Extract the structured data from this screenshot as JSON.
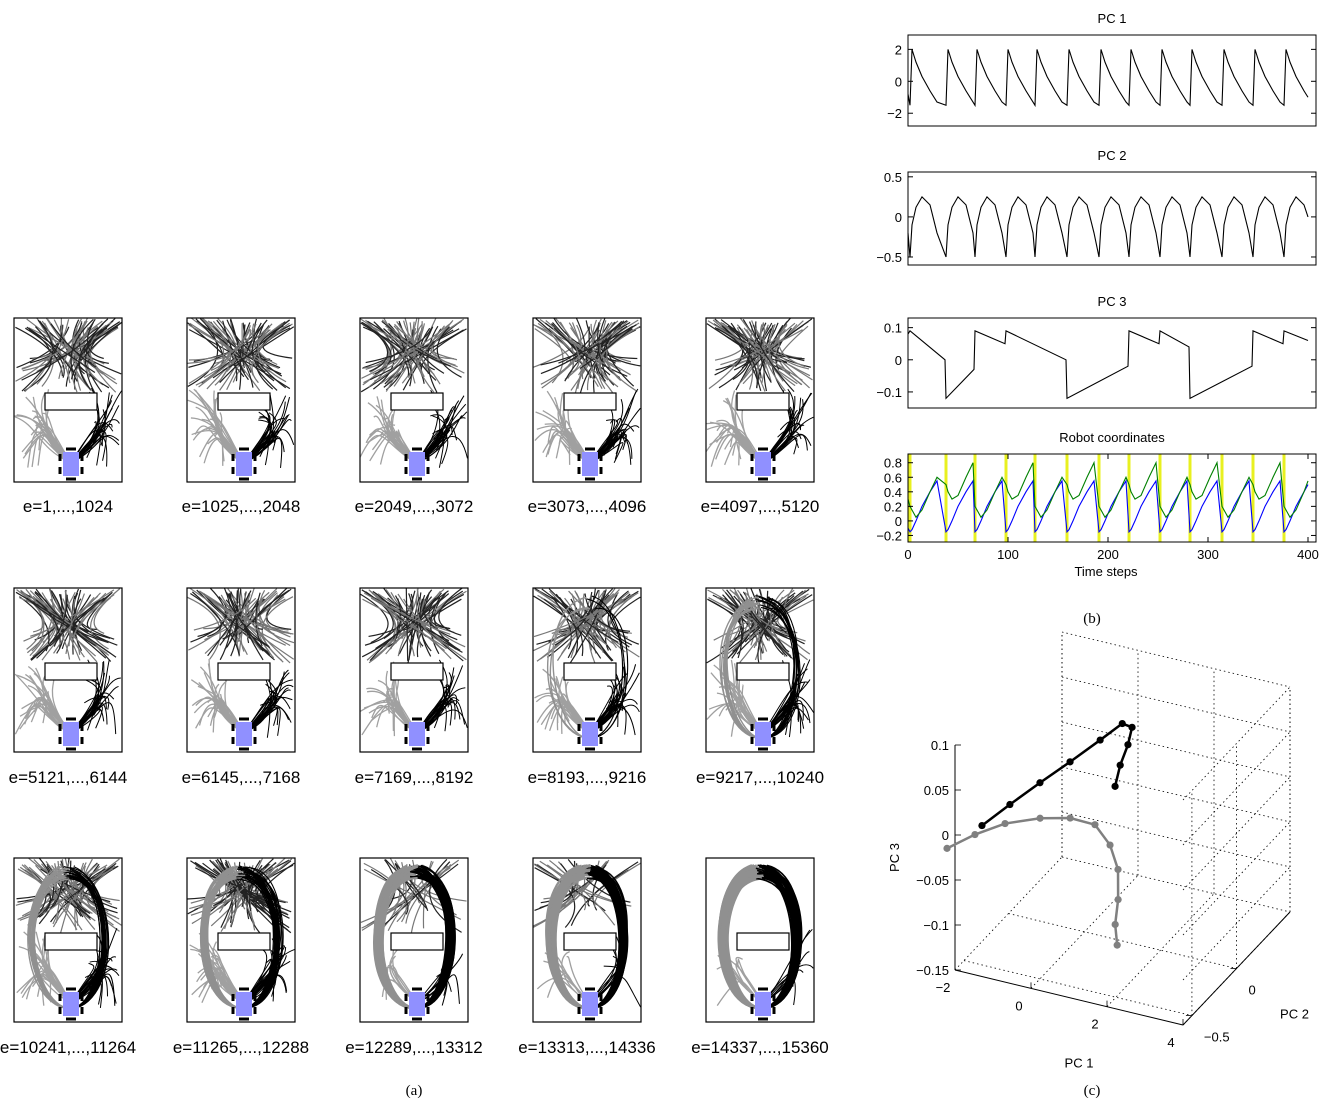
{
  "panel_labels": [
    "(a)",
    "(b)",
    "(c)"
  ],
  "panel_a": {
    "captions": [
      "e=1,...,1024",
      "e=1025,...,2048",
      "e=2049,...,3072",
      "e=3073,...,4096",
      "e=4097,...,5120",
      "e=5121,...,6144",
      "e=6145,...,7168",
      "e=7169,...,8192",
      "e=8193,...,9216",
      "e=9217,...,10240",
      "e=10241,...,11264",
      "e=11265,...,12288",
      "e=12289,...,13312",
      "e=13313,...,14336",
      "e=14337,...,15360"
    ]
  },
  "chart_data": [
    {
      "type": "line",
      "title": "PC 1",
      "xlim": [
        0,
        408
      ],
      "ylim": [
        -2.8,
        2.9
      ],
      "yticks": [
        {
          "value": -2,
          "label": "−2"
        },
        0,
        2
      ],
      "x": [
        0,
        2,
        4,
        8,
        14,
        22,
        29,
        38,
        40,
        44,
        50,
        58,
        65,
        67,
        69,
        73,
        79,
        87,
        94,
        98,
        100,
        104,
        110,
        118,
        125,
        127,
        129,
        133,
        139,
        147,
        154,
        159,
        161,
        165,
        171,
        179,
        186,
        191,
        193,
        197,
        203,
        211,
        218,
        221,
        223,
        227,
        233,
        241,
        248,
        252,
        254,
        258,
        264,
        272,
        279,
        282,
        284,
        288,
        294,
        302,
        309,
        314,
        316,
        320,
        326,
        334,
        341,
        345,
        347,
        351,
        357,
        365,
        372,
        376,
        378,
        382,
        388,
        396,
        400
      ],
      "series": [
        {
          "color": "#000000",
          "values": [
            -0.8,
            -1.5,
            2,
            1.2,
            0.3,
            -0.6,
            -1.3,
            -1.5,
            2,
            1.2,
            0.3,
            -0.6,
            -1.3,
            -1.5,
            2,
            1.2,
            0.3,
            -0.6,
            -1.3,
            -1.5,
            2,
            1.2,
            0.3,
            -0.6,
            -1.3,
            -1.5,
            2,
            1.2,
            0.3,
            -0.6,
            -1.3,
            -1.5,
            2,
            1.2,
            0.3,
            -0.6,
            -1.3,
            -1.5,
            2,
            1.2,
            0.3,
            -0.6,
            -1.3,
            -1.5,
            2,
            1.2,
            0.3,
            -0.6,
            -1.3,
            -1.5,
            2,
            1.2,
            0.3,
            -0.6,
            -1.3,
            -1.5,
            2,
            1.2,
            0.3,
            -0.6,
            -1.3,
            -1.5,
            2,
            1.2,
            0.3,
            -0.6,
            -1.3,
            -1.5,
            2,
            1.2,
            0.3,
            -0.6,
            -1.3,
            -1.5,
            2,
            1.2,
            0.3,
            -0.6,
            -1.0
          ]
        }
      ]
    },
    {
      "type": "line",
      "title": "PC 2",
      "xlim": [
        0,
        408
      ],
      "ylim": [
        -0.6,
        0.56
      ],
      "yticks": [
        {
          "value": -0.5,
          "label": "−0.5"
        },
        0,
        0.5
      ],
      "x": [
        0,
        2,
        4,
        8,
        14,
        22,
        29,
        38,
        40,
        44,
        50,
        58,
        65,
        67,
        69,
        73,
        79,
        87,
        94,
        98,
        100,
        104,
        110,
        118,
        125,
        127,
        129,
        133,
        139,
        147,
        154,
        159,
        161,
        165,
        171,
        179,
        186,
        191,
        193,
        197,
        203,
        211,
        218,
        221,
        223,
        227,
        233,
        241,
        248,
        252,
        254,
        258,
        264,
        272,
        279,
        282,
        284,
        288,
        294,
        302,
        309,
        314,
        316,
        320,
        326,
        334,
        341,
        345,
        347,
        351,
        357,
        365,
        372,
        376,
        378,
        382,
        388,
        396,
        400
      ],
      "series": [
        {
          "color": "#000000",
          "values": [
            -0.2,
            -0.5,
            -0.1,
            0.12,
            0.25,
            0.15,
            -0.2,
            -0.5,
            -0.1,
            0.12,
            0.25,
            0.15,
            -0.2,
            -0.5,
            -0.1,
            0.12,
            0.25,
            0.15,
            -0.2,
            -0.5,
            -0.1,
            0.12,
            0.25,
            0.15,
            -0.2,
            -0.5,
            -0.1,
            0.12,
            0.25,
            0.15,
            -0.2,
            -0.5,
            -0.1,
            0.12,
            0.25,
            0.15,
            -0.2,
            -0.5,
            -0.1,
            0.12,
            0.25,
            0.15,
            -0.2,
            -0.5,
            -0.1,
            0.12,
            0.25,
            0.15,
            -0.2,
            -0.5,
            -0.1,
            0.12,
            0.25,
            0.15,
            -0.2,
            -0.5,
            -0.1,
            0.12,
            0.25,
            0.15,
            -0.2,
            -0.5,
            -0.1,
            0.12,
            0.25,
            0.15,
            -0.2,
            -0.5,
            -0.1,
            0.12,
            0.25,
            0.15,
            -0.2,
            -0.5,
            -0.1,
            0.12,
            0.25,
            0.15,
            0.0
          ]
        }
      ]
    },
    {
      "type": "line",
      "title": "PC 3",
      "xlim": [
        0,
        408
      ],
      "ylim": [
        -0.15,
        0.13
      ],
      "yticks": [
        {
          "value": -0.1,
          "label": "−0.1"
        },
        0,
        0.1
      ],
      "x": [
        0,
        2,
        37,
        38,
        66,
        67,
        97,
        98,
        158,
        159,
        220,
        221,
        251,
        252,
        281,
        282,
        344,
        345,
        375,
        376,
        400
      ],
      "series": [
        {
          "color": "#000000",
          "values": [
            0.08,
            0.09,
            0.0,
            -0.12,
            -0.03,
            0.09,
            0.05,
            0.09,
            0.0,
            -0.12,
            -0.02,
            0.09,
            0.05,
            0.09,
            0.04,
            -0.12,
            -0.02,
            0.09,
            0.05,
            0.09,
            0.06
          ]
        }
      ]
    },
    {
      "type": "line",
      "title": "Robot coordinates",
      "xlabel": "Time steps",
      "xlim": [
        0,
        408
      ],
      "ylim": [
        -0.29,
        0.92
      ],
      "xticks": [
        0,
        100,
        200,
        300,
        400
      ],
      "yticks": [
        {
          "value": -0.2,
          "label": "−0.2"
        },
        0,
        0.2,
        0.4,
        0.6,
        0.8
      ],
      "markers_x": [
        2,
        38,
        67,
        98,
        127,
        159,
        191,
        221,
        252,
        282,
        314,
        345,
        376
      ],
      "marker_color": "#e8f020",
      "x": [
        0,
        2,
        4,
        8,
        14,
        22,
        29,
        38,
        40,
        44,
        50,
        58,
        65,
        67,
        69,
        73,
        79,
        87,
        94,
        98,
        100,
        104,
        110,
        118,
        125,
        127,
        129,
        133,
        139,
        147,
        154,
        159,
        161,
        165,
        171,
        179,
        186,
        191,
        193,
        197,
        203,
        211,
        218,
        221,
        223,
        227,
        233,
        241,
        248,
        252,
        254,
        258,
        264,
        272,
        279,
        282,
        284,
        288,
        294,
        302,
        309,
        314,
        316,
        320,
        326,
        334,
        341,
        345,
        347,
        351,
        357,
        365,
        372,
        376,
        378,
        382,
        388,
        396,
        400
      ],
      "series": [
        {
          "color": "#0000ff",
          "values": [
            -0.1,
            -0.15,
            -0.12,
            0.0,
            0.2,
            0.4,
            0.55,
            -0.15,
            -0.12,
            0.0,
            0.2,
            0.4,
            0.55,
            -0.15,
            -0.12,
            0.0,
            0.2,
            0.4,
            0.55,
            -0.15,
            -0.12,
            0.0,
            0.2,
            0.4,
            0.55,
            -0.15,
            -0.12,
            0.0,
            0.2,
            0.4,
            0.55,
            -0.15,
            -0.12,
            0.0,
            0.2,
            0.4,
            0.55,
            -0.15,
            -0.12,
            0.0,
            0.2,
            0.4,
            0.55,
            -0.15,
            -0.12,
            0.0,
            0.2,
            0.4,
            0.55,
            -0.15,
            -0.12,
            0.0,
            0.2,
            0.4,
            0.55,
            -0.15,
            -0.12,
            0.0,
            0.2,
            0.4,
            0.55,
            -0.15,
            -0.12,
            0.0,
            0.2,
            0.4,
            0.55,
            -0.15,
            -0.12,
            0.0,
            0.2,
            0.4,
            0.55,
            -0.15,
            -0.12,
            0.0,
            0.2,
            0.4,
            0.5
          ]
        },
        {
          "color": "#008000",
          "values": [
            0.3,
            0.2,
            0.15,
            0.05,
            0.15,
            0.4,
            0.6,
            0.5,
            0.4,
            0.3,
            0.35,
            0.6,
            0.8,
            0.2,
            0.15,
            0.05,
            0.15,
            0.4,
            0.6,
            0.5,
            0.4,
            0.3,
            0.35,
            0.6,
            0.8,
            0.2,
            0.15,
            0.05,
            0.15,
            0.4,
            0.6,
            0.5,
            0.4,
            0.3,
            0.35,
            0.6,
            0.8,
            0.2,
            0.15,
            0.05,
            0.15,
            0.4,
            0.6,
            0.5,
            0.4,
            0.3,
            0.35,
            0.6,
            0.8,
            0.2,
            0.15,
            0.05,
            0.15,
            0.4,
            0.6,
            0.5,
            0.4,
            0.3,
            0.35,
            0.6,
            0.8,
            0.2,
            0.15,
            0.05,
            0.15,
            0.4,
            0.6,
            0.5,
            0.4,
            0.3,
            0.35,
            0.6,
            0.8,
            0.2,
            0.15,
            0.05,
            0.15,
            0.4,
            0.55
          ]
        }
      ]
    },
    {
      "type": "scatter3d",
      "xlabel": "PC 1",
      "ylabel": "PC 2",
      "zlabel": "PC 3",
      "grid": true,
      "xlim": [
        -2,
        4
      ],
      "ylim": [
        -0.6,
        0.6
      ],
      "zlim": [
        -0.15,
        0.1
      ],
      "xticks": [
        {
          "value": -2,
          "label": "−2"
        },
        0,
        2,
        4
      ],
      "yticks": [
        {
          "value": -0.5,
          "label": "−0.5"
        },
        0
      ],
      "zticks": [
        {
          "value": -0.15,
          "label": "−0.15"
        },
        {
          "value": -0.1,
          "label": "−0.1"
        },
        {
          "value": -0.05,
          "label": "−0.05"
        },
        0,
        0.05,
        0.1
      ],
      "series": [
        {
          "color": "#000000",
          "x": [
            -1.76,
            -1.26,
            -0.82,
            -0.38,
            0.06,
            0.29,
            0.43,
            0.44,
            0.47,
            0.57
          ],
          "y": [
            -0.4,
            -0.3,
            -0.15,
            0,
            0.15,
            0.3,
            0.35,
            0.3,
            0.2,
            0.1
          ],
          "z": [
            -0.008,
            0.01,
            0.023,
            0.035,
            0.048,
            0.053,
            0.045,
            0.031,
            0.019,
            0.007
          ]
        },
        {
          "color": "#808080",
          "x": [
            -2.21,
            -1.71,
            -1.27,
            -0.7,
            -0.26,
            0.04,
            0.32,
            0.53,
            0.65,
            0.69,
            0.86
          ],
          "y": [
            -0.6,
            -0.5,
            -0.35,
            -0.2,
            -0.05,
            0.1,
            0.15,
            0.15,
            0.1,
            0.05,
            0
          ],
          "z": [
            -0.017,
            -0.007,
            -0.006,
            -0.01,
            -0.021,
            -0.041,
            -0.066,
            -0.091,
            -0.118,
            -0.14,
            -0.156
          ]
        }
      ]
    }
  ]
}
